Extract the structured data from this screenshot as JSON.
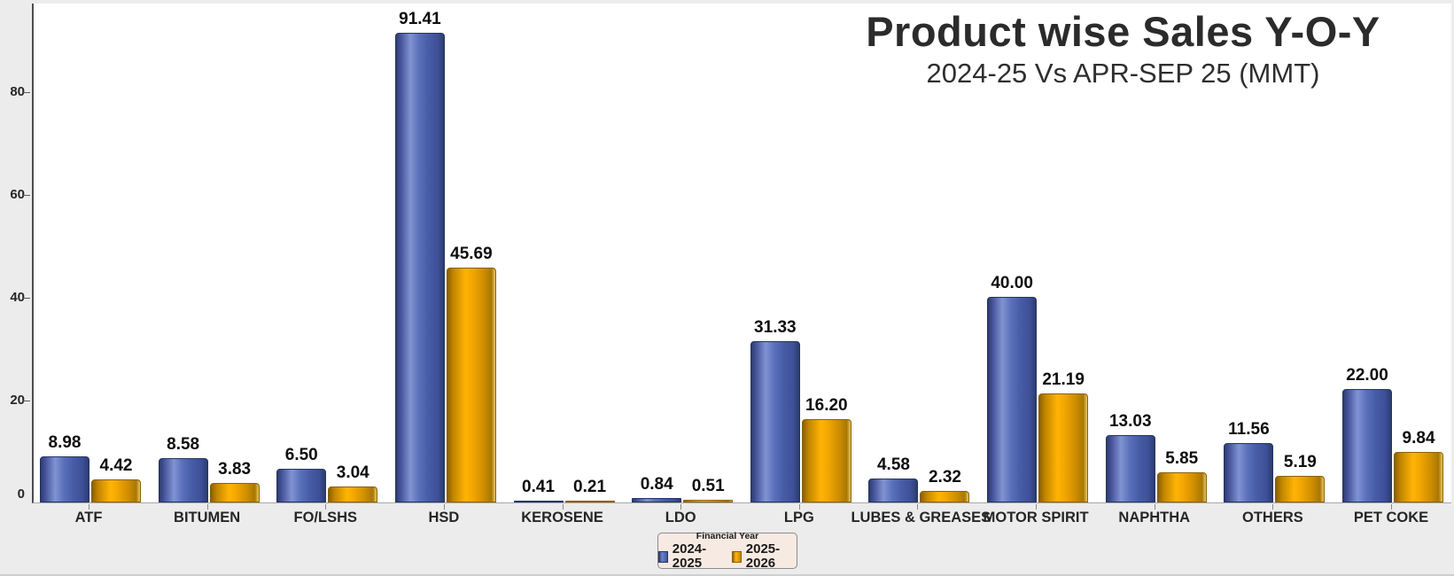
{
  "chart_data": {
    "type": "bar",
    "title": "Product wise Sales Y-O-Y",
    "subtitle": "2024-25 Vs APR-SEP 25 (MMT)",
    "unit": "MMT",
    "categories": [
      "ATF",
      "BITUMEN",
      "FO/LSHS",
      "HSD",
      "KEROSENE",
      "LDO",
      "LPG",
      "LUBES & GREASES",
      "MOTOR SPIRIT",
      "NAPHTHA",
      "OTHERS",
      "PET COKE"
    ],
    "series": [
      {
        "name": "2024-2025",
        "color": "#4460aa",
        "values": [
          8.98,
          8.58,
          6.5,
          91.41,
          0.41,
          0.84,
          31.33,
          4.58,
          40.0,
          13.03,
          11.56,
          22.0
        ]
      },
      {
        "name": "2025-2026",
        "color": "#e7a402",
        "values": [
          4.42,
          3.83,
          3.04,
          45.69,
          0.21,
          0.51,
          16.2,
          2.32,
          21.19,
          5.85,
          5.19,
          9.84
        ]
      }
    ],
    "value_label_decimals": 2,
    "y_ticks": [
      0,
      20,
      40,
      60,
      80
    ],
    "ylim": [
      0,
      97
    ],
    "grid": false,
    "legend": {
      "title": "Financial Year",
      "position": "bottom-center"
    }
  },
  "colors": {
    "canvas_bg": "#ececec",
    "plot_bg": "#ffffff",
    "axis_line": "#4d4d4d",
    "baseline": "#a8a8a8",
    "series_blue": "#4460aa",
    "series_gold": "#e7a402",
    "legend_bg": "#f7eae2",
    "legend_border": "#8a8a8a",
    "title_text": "#2b2b2b",
    "label_text": "#0d0d0d"
  }
}
